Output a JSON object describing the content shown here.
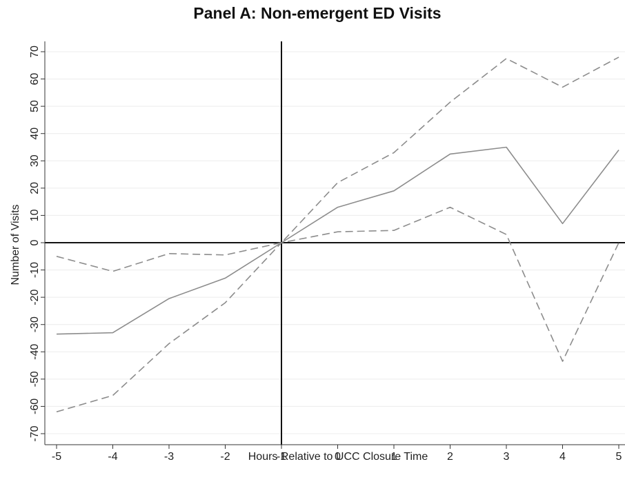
{
  "chart_data": {
    "type": "line",
    "title": "Panel A: Non-emergent ED Visits",
    "xlabel": "Hours Relative to UCC Closure Time",
    "ylabel": "Number of Visits",
    "x": [
      -5,
      -4,
      -3,
      -2,
      -1,
      0,
      1,
      2,
      3,
      4,
      5
    ],
    "xlim": [
      -5,
      5
    ],
    "ylim": [
      -75,
      72
    ],
    "xticks": [
      "-5",
      "-4",
      "-3",
      "-2",
      "-1",
      "0",
      "1",
      "2",
      "3",
      "4",
      "5"
    ],
    "yticks": [
      "70",
      "60",
      "50",
      "40",
      "30",
      "20",
      "10",
      "0",
      "-10",
      "-20",
      "-30",
      "-40",
      "-50",
      "-60",
      "-70"
    ],
    "grid": true,
    "reference_lines": {
      "x": -1,
      "y": 0
    },
    "series": [
      {
        "style": "solid",
        "color": "#8c8c8c",
        "values": [
          -33.5,
          -33,
          -20.5,
          -13,
          0,
          13,
          19,
          32.5,
          35,
          7,
          34
        ]
      },
      {
        "style": "dashed",
        "color": "#8c8c8c",
        "values": [
          -5,
          -10.5,
          -4,
          -4.5,
          0,
          22,
          33,
          51.5,
          67.5,
          57,
          68
        ]
      },
      {
        "style": "dashed",
        "color": "#8c8c8c",
        "values": [
          -62,
          -56,
          -37,
          -22,
          0,
          4,
          4.5,
          13,
          3,
          -43.5,
          0
        ]
      }
    ]
  }
}
